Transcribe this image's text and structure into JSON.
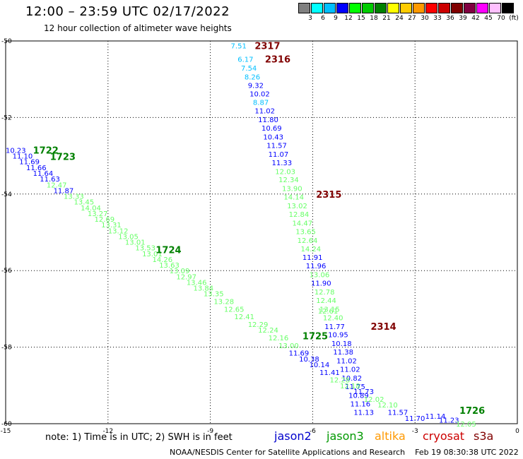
{
  "header": {
    "title": "12:00 – 23:59 UTC 02/17/2022",
    "subtitle": "12 hour collection of altimeter wave heights"
  },
  "color_scale": {
    "labels": [
      "3",
      "6",
      "9",
      "12",
      "15",
      "18",
      "21",
      "24",
      "27",
      "30",
      "33",
      "36",
      "39",
      "42",
      "45",
      "70",
      "(ft)"
    ],
    "colors": [
      "#808080",
      "#00ffff",
      "#00bfff",
      "#0000ff",
      "#00ff00",
      "#00cc00",
      "#008000",
      "#ffff00",
      "#ffcc00",
      "#ff9900",
      "#ff0000",
      "#cc0000",
      "#800000",
      "#800040",
      "#ff00ff",
      "#ffc0ff",
      "#000000"
    ]
  },
  "footer": {
    "note": "note: 1) Time is in UTC; 2) SWH is in feet",
    "satellites": [
      {
        "name": "jason2",
        "color": "#0000cc"
      },
      {
        "name": "jason3",
        "color": "#009900"
      },
      {
        "name": "altika",
        "color": "#ff9900"
      },
      {
        "name": "cryosat",
        "color": "#cc0000"
      },
      {
        "name": "s3a",
        "color": "#800000"
      }
    ],
    "credit": "NOAA/NESDIS Center for Satellite Applications and Research    Feb 19 08:30:38 UTC 2022"
  },
  "chart_data": {
    "type": "scatter",
    "title": "12:00 – 23:59 UTC 02/17/2022",
    "subtitle": "12 hour collection of altimeter wave heights",
    "xlim": [
      -15,
      0
    ],
    "ylim": [
      -60,
      -50
    ],
    "x_ticks": [
      "-15",
      "-12",
      "-9",
      "-6",
      "-3",
      "0"
    ],
    "y_ticks": [
      "-50",
      "-52",
      "-54",
      "-56",
      "-58",
      "-60"
    ],
    "grid": true,
    "track_labels": [
      {
        "text": "2317",
        "lon": -7.7,
        "lat": -50.12,
        "color": "#800000"
      },
      {
        "text": "2316",
        "lon": -7.4,
        "lat": -50.47,
        "color": "#800000"
      },
      {
        "text": "2315",
        "lon": -5.9,
        "lat": -54.0,
        "color": "#800000"
      },
      {
        "text": "2314",
        "lon": -4.3,
        "lat": -57.45,
        "color": "#800000"
      },
      {
        "text": "1722",
        "lon": -14.2,
        "lat": -52.85,
        "color": "#008000"
      },
      {
        "text": "1723",
        "lon": -13.7,
        "lat": -53.02,
        "color": "#008000"
      },
      {
        "text": "1724",
        "lon": -10.6,
        "lat": -55.45,
        "color": "#008000"
      },
      {
        "text": "1725",
        "lon": -6.3,
        "lat": -57.7,
        "color": "#008000"
      },
      {
        "text": "1726",
        "lon": -1.7,
        "lat": -59.65,
        "color": "#008000"
      }
    ],
    "series": [
      {
        "name": "2317-2314 pass",
        "values": [
          {
            "lon": -8.4,
            "lat": -50.12,
            "v": "7.51",
            "c": "#00bfff"
          },
          {
            "lon": -8.2,
            "lat": -50.47,
            "v": "6.17",
            "c": "#00bfff"
          },
          {
            "lon": -8.1,
            "lat": -50.7,
            "v": "7.54",
            "c": "#00bfff"
          },
          {
            "lon": -8.0,
            "lat": -50.93,
            "v": "8.26",
            "c": "#00bfff"
          },
          {
            "lon": -7.9,
            "lat": -51.15,
            "v": "9.32",
            "c": "#0000ff"
          },
          {
            "lon": -7.85,
            "lat": -51.37,
            "v": "10.02",
            "c": "#0000ff"
          },
          {
            "lon": -7.75,
            "lat": -51.6,
            "v": "8.87",
            "c": "#00bfff"
          },
          {
            "lon": -7.7,
            "lat": -51.82,
            "v": "11.02",
            "c": "#0000ff"
          },
          {
            "lon": -7.6,
            "lat": -52.05,
            "v": "11.80",
            "c": "#0000ff"
          },
          {
            "lon": -7.5,
            "lat": -52.27,
            "v": "10.69",
            "c": "#0000ff"
          },
          {
            "lon": -7.45,
            "lat": -52.5,
            "v": "10.43",
            "c": "#0000ff"
          },
          {
            "lon": -7.35,
            "lat": -52.72,
            "v": "11.57",
            "c": "#0000ff"
          },
          {
            "lon": -7.3,
            "lat": -52.95,
            "v": "11.07",
            "c": "#0000ff"
          },
          {
            "lon": -7.2,
            "lat": -53.17,
            "v": "11.33",
            "c": "#0000ff"
          },
          {
            "lon": -7.1,
            "lat": -53.4,
            "v": "12.03",
            "c": "#66ff66"
          },
          {
            "lon": -7.0,
            "lat": -53.62,
            "v": "12.34",
            "c": "#66ff66"
          },
          {
            "lon": -6.9,
            "lat": -53.85,
            "v": "13.90",
            "c": "#66ff66"
          },
          {
            "lon": -6.85,
            "lat": -54.07,
            "v": "14.14",
            "c": "#66ff66"
          },
          {
            "lon": -6.75,
            "lat": -54.3,
            "v": "13.02",
            "c": "#66ff66"
          },
          {
            "lon": -6.7,
            "lat": -54.52,
            "v": "12.84",
            "c": "#66ff66"
          },
          {
            "lon": -6.6,
            "lat": -54.75,
            "v": "14.47",
            "c": "#66ff66"
          },
          {
            "lon": -6.5,
            "lat": -54.97,
            "v": "13.65",
            "c": "#66ff66"
          },
          {
            "lon": -6.45,
            "lat": -55.2,
            "v": "12.64",
            "c": "#66ff66"
          },
          {
            "lon": -6.35,
            "lat": -55.42,
            "v": "14.24",
            "c": "#66ff66"
          },
          {
            "lon": -6.3,
            "lat": -55.65,
            "v": "11.91",
            "c": "#0000ff"
          },
          {
            "lon": -6.2,
            "lat": -55.87,
            "v": "11.96",
            "c": "#0000ff"
          },
          {
            "lon": -6.1,
            "lat": -56.1,
            "v": "13.06",
            "c": "#66ff66"
          },
          {
            "lon": -6.05,
            "lat": -56.32,
            "v": "11.90",
            "c": "#0000ff"
          },
          {
            "lon": -5.95,
            "lat": -56.55,
            "v": "12.78",
            "c": "#66ff66"
          },
          {
            "lon": -5.9,
            "lat": -56.77,
            "v": "12.44",
            "c": "#66ff66"
          },
          {
            "lon": -5.8,
            "lat": -57.0,
            "v": "13.15",
            "c": "#66ff66"
          },
          {
            "lon": -5.85,
            "lat": -57.05,
            "v": "12.61",
            "c": "#66ff66"
          },
          {
            "lon": -5.7,
            "lat": -57.22,
            "v": "12.40",
            "c": "#66ff66"
          },
          {
            "lon": -5.65,
            "lat": -57.45,
            "v": "11.77",
            "c": "#0000ff"
          },
          {
            "lon": -5.55,
            "lat": -57.67,
            "v": "10.95",
            "c": "#0000ff"
          },
          {
            "lon": -5.45,
            "lat": -57.9,
            "v": "10.18",
            "c": "#0000ff"
          },
          {
            "lon": -5.4,
            "lat": -58.12,
            "v": "11.38",
            "c": "#0000ff"
          },
          {
            "lon": -5.3,
            "lat": -58.35,
            "v": "11.02",
            "c": "#0000ff"
          },
          {
            "lon": -5.2,
            "lat": -58.57,
            "v": "11.02",
            "c": "#0000ff"
          },
          {
            "lon": -5.15,
            "lat": -58.8,
            "v": "10.82",
            "c": "#0000ff"
          },
          {
            "lon": -5.05,
            "lat": -59.02,
            "v": "11.75",
            "c": "#0000ff"
          },
          {
            "lon": -4.95,
            "lat": -59.25,
            "v": "10.89",
            "c": "#0000ff"
          },
          {
            "lon": -4.9,
            "lat": -59.47,
            "v": "11.16",
            "c": "#0000ff"
          },
          {
            "lon": -4.8,
            "lat": -59.7,
            "v": "11.13",
            "c": "#0000ff"
          }
        ]
      },
      {
        "name": "1722-1726 pass",
        "values": [
          {
            "lon": -15.0,
            "lat": -52.85,
            "v": "10.23",
            "c": "#0000ff"
          },
          {
            "lon": -14.8,
            "lat": -53.0,
            "v": "11.10",
            "c": "#0000ff"
          },
          {
            "lon": -14.6,
            "lat": -53.15,
            "v": "11.69",
            "c": "#0000ff"
          },
          {
            "lon": -14.4,
            "lat": -53.3,
            "v": "11.66",
            "c": "#0000ff"
          },
          {
            "lon": -14.2,
            "lat": -53.45,
            "v": "11.64",
            "c": "#0000ff"
          },
          {
            "lon": -14.0,
            "lat": -53.6,
            "v": "11.63",
            "c": "#0000ff"
          },
          {
            "lon": -13.8,
            "lat": -53.75,
            "v": "12.47",
            "c": "#66ff66"
          },
          {
            "lon": -13.6,
            "lat": -53.9,
            "v": "11.87",
            "c": "#0000ff"
          },
          {
            "lon": -13.3,
            "lat": -54.05,
            "v": "13.33",
            "c": "#66ff66"
          },
          {
            "lon": -13.0,
            "lat": -54.2,
            "v": "13.45",
            "c": "#66ff66"
          },
          {
            "lon": -12.8,
            "lat": -54.35,
            "v": "14.04",
            "c": "#66ff66"
          },
          {
            "lon": -12.6,
            "lat": -54.5,
            "v": "13.27",
            "c": "#66ff66"
          },
          {
            "lon": -12.4,
            "lat": -54.65,
            "v": "12.69",
            "c": "#66ff66"
          },
          {
            "lon": -12.2,
            "lat": -54.8,
            "v": "13.31",
            "c": "#66ff66"
          },
          {
            "lon": -12.0,
            "lat": -54.95,
            "v": "13.12",
            "c": "#66ff66"
          },
          {
            "lon": -11.7,
            "lat": -55.1,
            "v": "13.05",
            "c": "#66ff66"
          },
          {
            "lon": -11.5,
            "lat": -55.25,
            "v": "13.01",
            "c": "#66ff66"
          },
          {
            "lon": -11.2,
            "lat": -55.4,
            "v": "13.53",
            "c": "#66ff66"
          },
          {
            "lon": -11.0,
            "lat": -55.55,
            "v": "13.01",
            "c": "#66ff66"
          },
          {
            "lon": -10.7,
            "lat": -55.7,
            "v": "14.26",
            "c": "#66ff66"
          },
          {
            "lon": -10.5,
            "lat": -55.85,
            "v": "13.63",
            "c": "#66ff66"
          },
          {
            "lon": -10.2,
            "lat": -56.0,
            "v": "13.09",
            "c": "#66ff66"
          },
          {
            "lon": -10.0,
            "lat": -56.15,
            "v": "12.97",
            "c": "#66ff66"
          },
          {
            "lon": -9.7,
            "lat": -56.3,
            "v": "13.46",
            "c": "#66ff66"
          },
          {
            "lon": -9.5,
            "lat": -56.45,
            "v": "13.84",
            "c": "#66ff66"
          },
          {
            "lon": -9.2,
            "lat": -56.6,
            "v": "13.35",
            "c": "#66ff66"
          },
          {
            "lon": -8.9,
            "lat": -56.8,
            "v": "13.28",
            "c": "#66ff66"
          },
          {
            "lon": -8.6,
            "lat": -57.0,
            "v": "12.65",
            "c": "#66ff66"
          },
          {
            "lon": -8.3,
            "lat": -57.2,
            "v": "12.41",
            "c": "#66ff66"
          },
          {
            "lon": -7.9,
            "lat": -57.4,
            "v": "12.29",
            "c": "#66ff66"
          },
          {
            "lon": -7.6,
            "lat": -57.55,
            "v": "12.24",
            "c": "#66ff66"
          },
          {
            "lon": -7.3,
            "lat": -57.75,
            "v": "12.16",
            "c": "#66ff66"
          },
          {
            "lon": -7.0,
            "lat": -57.95,
            "v": "13.00",
            "c": "#66ff66"
          },
          {
            "lon": -6.7,
            "lat": -58.15,
            "v": "11.69",
            "c": "#0000ff"
          },
          {
            "lon": -6.4,
            "lat": -58.3,
            "v": "10.38",
            "c": "#0000ff"
          },
          {
            "lon": -6.1,
            "lat": -58.45,
            "v": "10.14",
            "c": "#0000ff"
          },
          {
            "lon": -5.8,
            "lat": -58.65,
            "v": "11.41",
            "c": "#0000ff"
          },
          {
            "lon": -5.5,
            "lat": -58.85,
            "v": "12.28",
            "c": "#66ff66"
          },
          {
            "lon": -5.2,
            "lat": -59.0,
            "v": "12.18",
            "c": "#66ff66"
          },
          {
            "lon": -4.8,
            "lat": -59.15,
            "v": "11.73",
            "c": "#0000ff"
          },
          {
            "lon": -4.5,
            "lat": -59.35,
            "v": "12.02",
            "c": "#66ff66"
          },
          {
            "lon": -4.1,
            "lat": -59.5,
            "v": "12.10",
            "c": "#66ff66"
          },
          {
            "lon": -3.8,
            "lat": -59.7,
            "v": "11.57",
            "c": "#0000ff"
          },
          {
            "lon": -3.3,
            "lat": -59.85,
            "v": "11.70",
            "c": "#0000ff"
          },
          {
            "lon": -2.7,
            "lat": -59.8,
            "v": "11.14",
            "c": "#0000ff"
          },
          {
            "lon": -2.3,
            "lat": -59.9,
            "v": "11.23",
            "c": "#0000ff"
          },
          {
            "lon": -1.8,
            "lat": -60.0,
            "v": "12.05",
            "c": "#66ff66"
          }
        ]
      }
    ]
  }
}
